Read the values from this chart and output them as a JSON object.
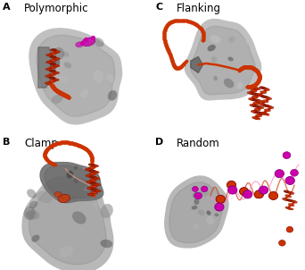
{
  "bg_color": "#ffffff",
  "label_fontsize": 8,
  "title_fontsize": 8.5,
  "orange": "#cc3300",
  "magenta": "#cc00aa",
  "light_magenta": "#ff88cc",
  "light_orange": "#ffaa88",
  "gray_light": "#c8c8c8",
  "gray_mid": "#a0a0a0",
  "gray_dark": "#686868",
  "gray_vdark": "#404040",
  "panels": {
    "A": {
      "label": "A",
      "title": "Polymorphic"
    },
    "B": {
      "label": "B",
      "title": "Clamp"
    },
    "C": {
      "label": "C",
      "title": "Flanking"
    },
    "D": {
      "label": "D",
      "title": "Random"
    }
  }
}
